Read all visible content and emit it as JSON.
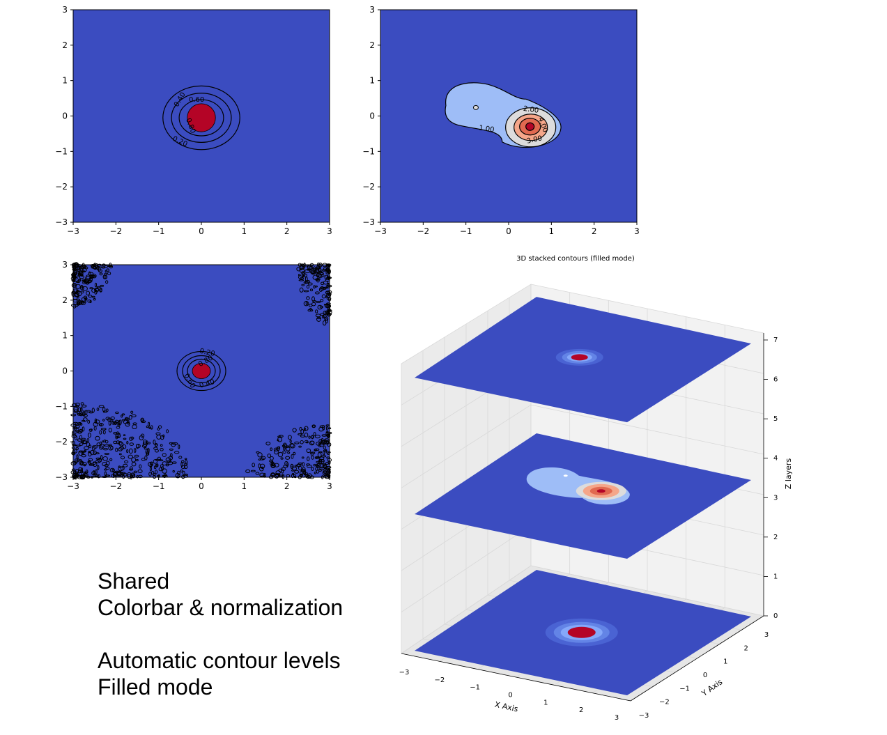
{
  "colors": {
    "background": "#3b4cc0",
    "light_blue": "#9ebdf7",
    "light_gray": "#dddcdc",
    "salmon": "#f5a689",
    "orange_red": "#e16950",
    "dark_red": "#b40426",
    "grid_panel": "#f2f2f2",
    "grid_line": "#d8d8d8"
  },
  "notes": {
    "line1": "Shared",
    "line2": "Colorbar & normalization",
    "line3": "Automatic contour levels",
    "line4": "Filled mode"
  },
  "chart_data": [
    {
      "type": "contour",
      "panel": "top-left",
      "title": "",
      "xlabel": "",
      "ylabel": "",
      "xlim": [
        -3,
        3
      ],
      "ylim": [
        -3,
        3
      ],
      "xticks": [
        "−3",
        "−2",
        "−1",
        "0",
        "1",
        "2",
        "3"
      ],
      "yticks": [
        "−3",
        "−2",
        "−1",
        "0",
        "1",
        "2",
        "3"
      ],
      "peak": [
        0,
        -0.05
      ],
      "levels": [
        0.2,
        0.4,
        0.6,
        0.8
      ],
      "contour_labels": [
        "0.40",
        "0.60",
        "0.80",
        "0.20"
      ]
    },
    {
      "type": "contour",
      "panel": "top-right",
      "title": "",
      "xlabel": "",
      "ylabel": "",
      "xlim": [
        -3,
        3
      ],
      "ylim": [
        -3,
        3
      ],
      "xticks": [
        "−3",
        "−2",
        "−1",
        "0",
        "1",
        "2",
        "3"
      ],
      "yticks": [
        "−3",
        "−2",
        "−1",
        "0",
        "1",
        "2",
        "3"
      ],
      "peaks": [
        [
          -0.8,
          0.2
        ],
        [
          0.5,
          -0.3
        ]
      ],
      "levels": [
        1,
        2,
        3,
        4
      ],
      "contour_labels": [
        "2.00",
        "4.00",
        "1.00",
        "3.00"
      ]
    },
    {
      "type": "contour",
      "panel": "bottom-left",
      "title": "",
      "xlabel": "",
      "ylabel": "",
      "xlim": [
        -3,
        3
      ],
      "ylim": [
        -3,
        3
      ],
      "xticks": [
        "−3",
        "−2",
        "−1",
        "0",
        "1",
        "2",
        "3"
      ],
      "yticks": [
        "−3",
        "−2",
        "−1",
        "0",
        "1",
        "2",
        "3"
      ],
      "peak": [
        0,
        0
      ],
      "levels": [
        0.2,
        0.4,
        0.6,
        0.8
      ],
      "contour_labels": [
        "0.20",
        "0.80",
        "0.60",
        "0.40"
      ]
    },
    {
      "type": "contour3d",
      "panel": "bottom-right",
      "title": "3D stacked contours (filled mode)",
      "xlabel": "X Axis",
      "ylabel": "Y Axis",
      "zlabel": "Z layers",
      "xlim": [
        -3,
        3
      ],
      "ylim": [
        -3,
        3
      ],
      "zlim": [
        0,
        7
      ],
      "xticks": [
        "−3",
        "−2",
        "−1",
        "0",
        "1",
        "2",
        "3"
      ],
      "yticks": [
        "−3",
        "−2",
        "−1",
        "0",
        "1",
        "2",
        "3"
      ],
      "zticks": [
        "0",
        "1",
        "2",
        "3",
        "4",
        "5",
        "6",
        "7"
      ],
      "layers": [
        {
          "z": 0,
          "description_source": "bottom-left"
        },
        {
          "z": 3.5,
          "description_source": "top-right"
        },
        {
          "z": 7,
          "description_source": "top-left"
        }
      ]
    }
  ]
}
